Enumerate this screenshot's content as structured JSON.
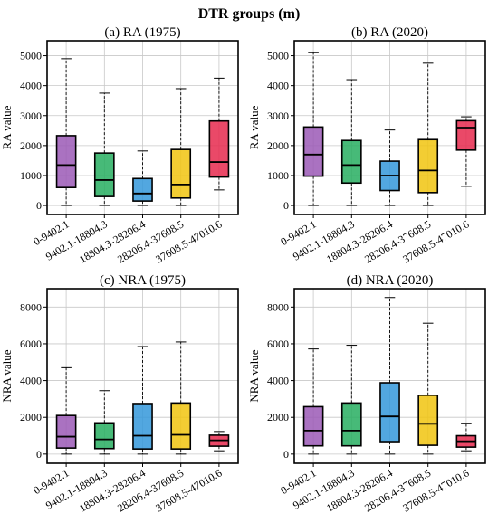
{
  "figure": {
    "suptitle": "DTR groups (m)"
  },
  "chart_data": [
    {
      "type": "boxplot",
      "title": "(a) RA (1975)",
      "ylabel": "RA value",
      "ylim": [
        -300,
        5500
      ],
      "yticks": [
        0,
        1000,
        2000,
        3000,
        4000,
        5000
      ],
      "grid": true,
      "categories": [
        "0-9402.1",
        "9402.1-18804.3",
        "18804.3-28206.4",
        "28206.4-37608.5",
        "37608.5-47010.6"
      ],
      "colors": [
        "#9b59b6",
        "#27ae60",
        "#3498db",
        "#f1c40f",
        "#e6294d"
      ],
      "boxes": [
        {
          "whislo": 0,
          "q1": 600,
          "med": 1350,
          "q3": 2330,
          "whishi": 4900
        },
        {
          "whislo": 0,
          "q1": 300,
          "med": 850,
          "q3": 1750,
          "whishi": 3750
        },
        {
          "whislo": 0,
          "q1": 150,
          "med": 400,
          "q3": 900,
          "whishi": 1820
        },
        {
          "whislo": 0,
          "q1": 250,
          "med": 700,
          "q3": 1870,
          "whishi": 3900
        },
        {
          "whislo": 520,
          "q1": 950,
          "med": 1450,
          "q3": 2820,
          "whishi": 4250
        }
      ]
    },
    {
      "type": "boxplot",
      "title": "(b) RA (2020)",
      "ylabel": "RA value",
      "ylim": [
        -300,
        5500
      ],
      "yticks": [
        0,
        1000,
        2000,
        3000,
        4000,
        5000
      ],
      "grid": true,
      "categories": [
        "0-9402.1",
        "9402.1-18804.3",
        "18804.3-28206.4",
        "28206.4-37608.5",
        "37608.5-47010.6"
      ],
      "colors": [
        "#9b59b6",
        "#27ae60",
        "#3498db",
        "#f1c40f",
        "#e6294d"
      ],
      "boxes": [
        {
          "whislo": 0,
          "q1": 980,
          "med": 1700,
          "q3": 2620,
          "whishi": 5100
        },
        {
          "whislo": 0,
          "q1": 750,
          "med": 1350,
          "q3": 2170,
          "whishi": 4200
        },
        {
          "whislo": 0,
          "q1": 500,
          "med": 1000,
          "q3": 1480,
          "whishi": 2520
        },
        {
          "whislo": 0,
          "q1": 430,
          "med": 1170,
          "q3": 2200,
          "whishi": 4750
        },
        {
          "whislo": 640,
          "q1": 1850,
          "med": 2600,
          "q3": 2830,
          "whishi": 2960
        }
      ]
    },
    {
      "type": "boxplot",
      "title": "(c) NRA (1975)",
      "ylabel": "NRA value",
      "ylim": [
        -500,
        9000
      ],
      "yticks": [
        0,
        2000,
        4000,
        6000,
        8000
      ],
      "grid": true,
      "categories": [
        "0-9402.1",
        "9402.1-18804.3",
        "18804.3-28206.4",
        "28206.4-37608.5",
        "37608.5-47010.6"
      ],
      "colors": [
        "#9b59b6",
        "#27ae60",
        "#3498db",
        "#f1c40f",
        "#e6294d"
      ],
      "boxes": [
        {
          "whislo": 0,
          "q1": 330,
          "med": 950,
          "q3": 2100,
          "whishi": 4700
        },
        {
          "whislo": 0,
          "q1": 300,
          "med": 800,
          "q3": 1700,
          "whishi": 3450
        },
        {
          "whislo": 0,
          "q1": 280,
          "med": 1000,
          "q3": 2750,
          "whishi": 5850
        },
        {
          "whislo": 0,
          "q1": 280,
          "med": 1050,
          "q3": 2780,
          "whishi": 6100
        },
        {
          "whislo": 180,
          "q1": 430,
          "med": 750,
          "q3": 1030,
          "whishi": 1230
        }
      ]
    },
    {
      "type": "boxplot",
      "title": "(d) NRA (2020)",
      "ylabel": "NRA value",
      "ylim": [
        -500,
        9000
      ],
      "yticks": [
        0,
        2000,
        4000,
        6000,
        8000
      ],
      "grid": true,
      "categories": [
        "0-9402.1",
        "9402.1-18804.3",
        "18804.3-28206.4",
        "28206.4-37608.5",
        "37608.5-47010.6"
      ],
      "colors": [
        "#9b59b6",
        "#27ae60",
        "#3498db",
        "#f1c40f",
        "#e6294d"
      ],
      "boxes": [
        {
          "whislo": 0,
          "q1": 450,
          "med": 1280,
          "q3": 2580,
          "whishi": 5720
        },
        {
          "whislo": 0,
          "q1": 450,
          "med": 1280,
          "q3": 2780,
          "whishi": 5920
        },
        {
          "whislo": 0,
          "q1": 680,
          "med": 2050,
          "q3": 3880,
          "whishi": 8520
        },
        {
          "whislo": 0,
          "q1": 480,
          "med": 1650,
          "q3": 3200,
          "whishi": 7120
        },
        {
          "whislo": 180,
          "q1": 380,
          "med": 700,
          "q3": 1000,
          "whishi": 1680
        }
      ]
    }
  ]
}
